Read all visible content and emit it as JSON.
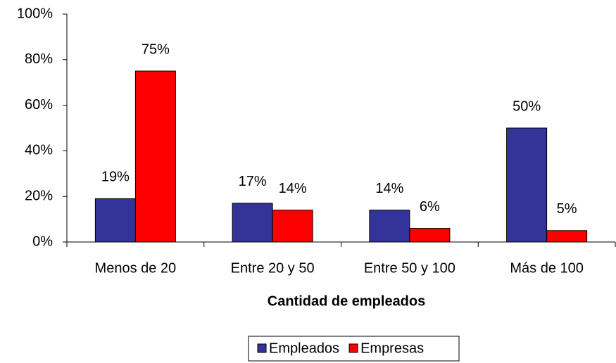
{
  "chart_data": {
    "type": "bar",
    "x_label": "Cantidad de empleados",
    "categories": [
      "Menos de 20",
      "Entre 20 y 50",
      "Entre 50 y 100",
      "Más de 100"
    ],
    "series": [
      {
        "name": "Empleados",
        "color": "#333399",
        "values": [
          19,
          17,
          14,
          50
        ],
        "value_labels": [
          "19%",
          "17%",
          "14%",
          "50%"
        ]
      },
      {
        "name": "Empresas",
        "color": "#ff0000",
        "values": [
          75,
          14,
          6,
          5
        ],
        "value_labels": [
          "75%",
          "14%",
          "6%",
          "5%"
        ]
      }
    ],
    "ylim": [
      0,
      100
    ],
    "yticks": [
      {
        "value": 0,
        "label": "0%"
      },
      {
        "value": 20,
        "label": "20%"
      },
      {
        "value": 40,
        "label": "40%"
      },
      {
        "value": 60,
        "label": "60%"
      },
      {
        "value": 80,
        "label": "80%"
      },
      {
        "value": 100,
        "label": "100%"
      }
    ],
    "grid": false,
    "legend": "bottom"
  }
}
